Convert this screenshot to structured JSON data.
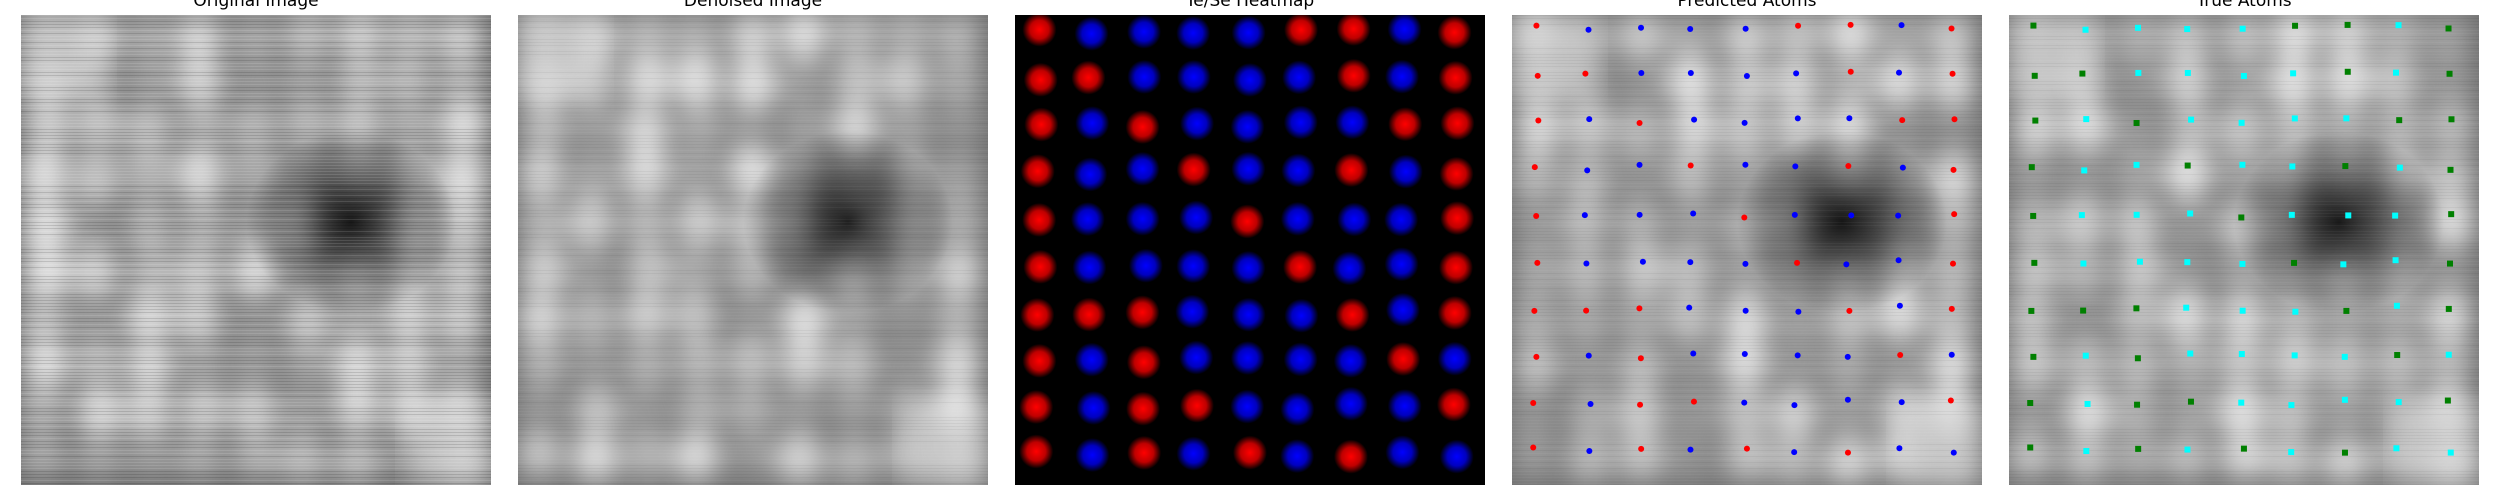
{
  "panels": [
    {
      "title": "Original Image",
      "kind": "stm",
      "noise": 1.0
    },
    {
      "title": "Denoised Image",
      "kind": "stm",
      "noise": 0.35
    },
    {
      "title": "Te/Se Heatmap",
      "kind": "heatmap",
      "colors": {
        "Te": "#ff0000",
        "Se": "#0000ff",
        "background": "#000000"
      }
    },
    {
      "title": "Predicted Atoms",
      "kind": "predicted",
      "colors": {
        "Te": "#ff0000",
        "Se": "#0000ff"
      }
    },
    {
      "title": "True Atoms",
      "kind": "true",
      "colors": {
        "Te": "#00ffff",
        "Se": "#008000"
      }
    }
  ],
  "lattice": {
    "columns": 9,
    "rows": 10
  }
}
